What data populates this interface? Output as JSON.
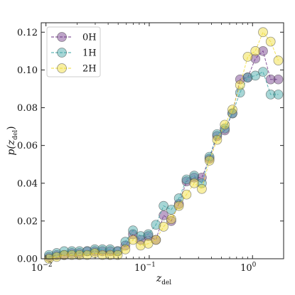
{
  "chart_data": {
    "type": "line",
    "xscale": "log",
    "xlim": [
      0.009,
      2.0
    ],
    "ylim": [
      0.0,
      0.125
    ],
    "xlabel_main": "z",
    "xlabel_sub": "del",
    "ylabel_pre": "p(z",
    "ylabel_sub": "del",
    "ylabel_post": ")",
    "xticks": [
      {
        "value": 0.01,
        "base": "10",
        "exp": "−2"
      },
      {
        "value": 0.1,
        "base": "10",
        "exp": "−1"
      },
      {
        "value": 1,
        "base": "10",
        "exp": "0"
      }
    ],
    "yticks": [
      {
        "value": 0.0,
        "label": "0.00"
      },
      {
        "value": 0.02,
        "label": "0.02"
      },
      {
        "value": 0.04,
        "label": "0.04"
      },
      {
        "value": 0.06,
        "label": "0.06"
      },
      {
        "value": 0.08,
        "label": "0.08"
      },
      {
        "value": 0.1,
        "label": "0.10"
      },
      {
        "value": 0.12,
        "label": "0.12"
      }
    ],
    "legend_position": "top-left",
    "x": [
      0.0107,
      0.0127,
      0.015,
      0.0178,
      0.0211,
      0.0251,
      0.0297,
      0.0352,
      0.0418,
      0.0495,
      0.0587,
      0.0696,
      0.0826,
      0.0979,
      0.1161,
      0.1377,
      0.1633,
      0.1936,
      0.2296,
      0.2723,
      0.3229,
      0.3829,
      0.4541,
      0.5385,
      0.6386,
      0.7573,
      0.898,
      1.065,
      1.263,
      1.497,
      1.776
    ],
    "series": [
      {
        "name": "0H",
        "color": "#6c3384",
        "values": [
          0.001,
          0.002,
          0.002,
          0.003,
          0.003,
          0.004,
          0.004,
          0.004,
          0.004,
          0.004,
          0.007,
          0.013,
          0.01,
          0.012,
          0.01,
          0.023,
          0.02,
          0.029,
          0.041,
          0.043,
          0.043,
          0.053,
          0.065,
          0.068,
          0.077,
          0.095,
          0.096,
          0.106,
          0.11,
          0.095,
          0.095
        ]
      },
      {
        "name": "1H",
        "color": "#3ba4a4",
        "values": [
          0.002,
          0.003,
          0.004,
          0.004,
          0.004,
          0.004,
          0.005,
          0.005,
          0.005,
          0.004,
          0.009,
          0.015,
          0.012,
          0.013,
          0.018,
          0.028,
          0.026,
          0.032,
          0.042,
          0.044,
          0.04,
          0.054,
          0.066,
          0.069,
          0.077,
          0.088,
          0.096,
          0.097,
          0.099,
          0.087,
          0.087
        ]
      },
      {
        "name": "2H",
        "color": "#f0dc30",
        "values": [
          0.0,
          0.001,
          0.002,
          0.002,
          0.002,
          0.002,
          0.003,
          0.002,
          0.002,
          0.002,
          0.005,
          0.01,
          0.007,
          0.008,
          0.01,
          0.017,
          0.021,
          0.028,
          0.034,
          0.04,
          0.037,
          0.052,
          0.063,
          0.071,
          0.079,
          0.092,
          0.107,
          0.11,
          0.12,
          0.115,
          0.105
        ]
      }
    ]
  }
}
